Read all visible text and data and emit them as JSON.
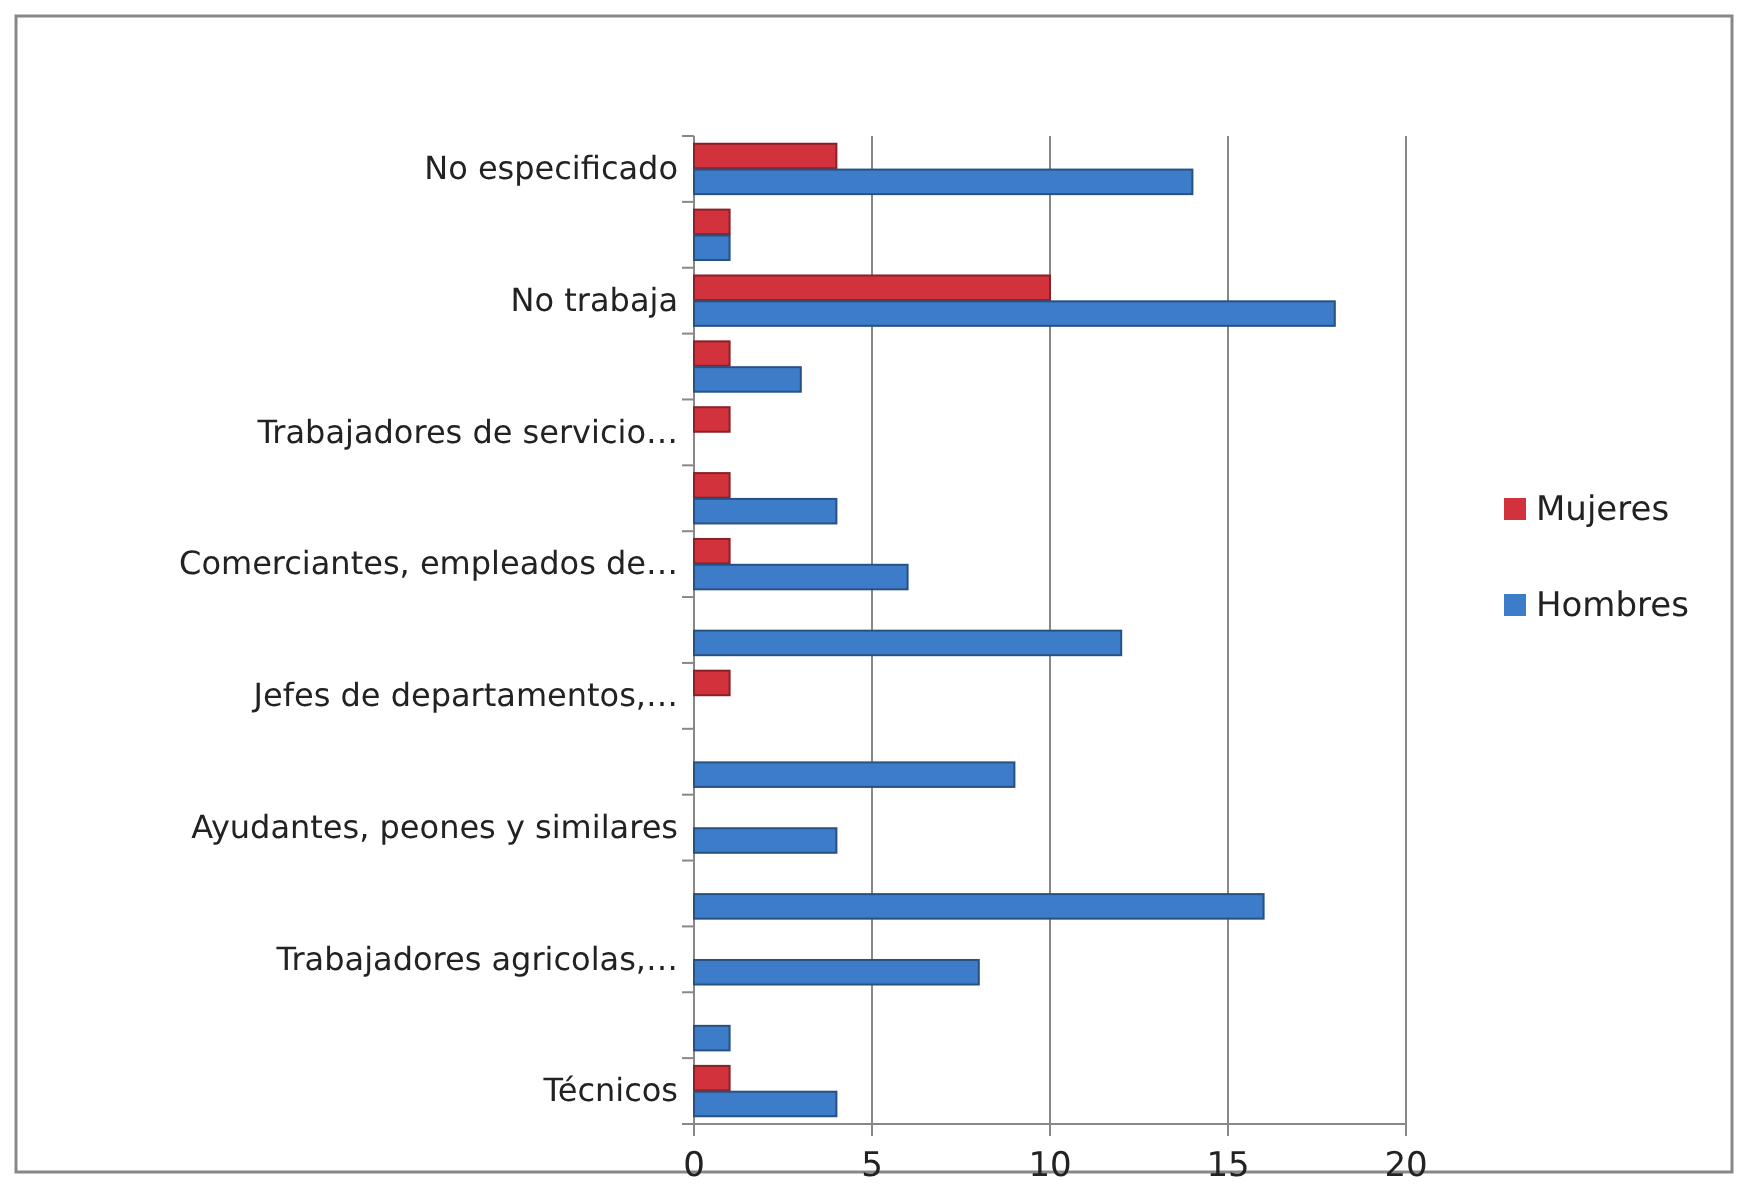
{
  "chart_data": {
    "type": "bar",
    "orientation": "horizontal",
    "categories": [
      "No especificado",
      null,
      "No trabaja",
      null,
      "Trabajadores de servicio…",
      null,
      "Comerciantes, empleados de…",
      null,
      "Jefes de departamentos,…",
      null,
      "Ayudantes, peones y similares",
      null,
      "Trabajadores agricolas,…",
      null,
      "Técnicos"
    ],
    "series": [
      {
        "name": "Mujeres",
        "color": "#d2323c",
        "values": [
          4,
          1,
          10,
          1,
          1,
          1,
          1,
          null,
          1,
          null,
          null,
          null,
          null,
          null,
          1
        ]
      },
      {
        "name": "Hombres",
        "color": "#3d7cc9",
        "values": [
          14,
          1,
          18,
          3,
          null,
          4,
          6,
          12,
          null,
          9,
          4,
          16,
          8,
          1,
          4
        ]
      }
    ],
    "xlim": [
      0,
      20
    ],
    "xticks": [
      0,
      5,
      10,
      15,
      20
    ],
    "grid": "x",
    "legend": "right"
  }
}
